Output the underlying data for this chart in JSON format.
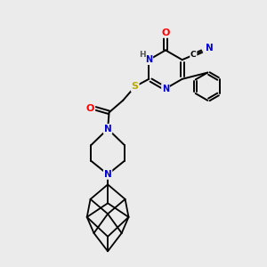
{
  "bg_color": "#ebebeb",
  "atom_colors": {
    "C": "#000000",
    "N": "#0000cc",
    "O": "#ff0000",
    "S": "#bbaa00",
    "H": "#555555"
  },
  "bond_color": "#000000",
  "figsize": [
    3.0,
    3.0
  ],
  "dpi": 100
}
